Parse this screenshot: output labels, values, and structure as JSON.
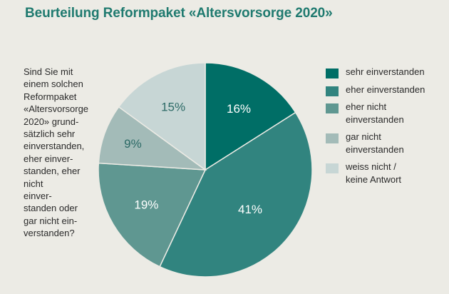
{
  "title": "Beurteilung Reformpaket «Altersvorsorge 2020»",
  "question": {
    "lines": [
      "Sind Sie mit",
      "einem solchen",
      "Reformpaket",
      "«Altersvorsorge",
      "2020» grund-",
      "sätzlich sehr",
      "einverstanden,",
      "eher einver-",
      "standen, eher",
      "nicht",
      "einver-",
      "standen oder",
      "gar nicht ein-",
      "verstanden?"
    ]
  },
  "chart_data": {
    "type": "pie",
    "title": "Beurteilung Reformpaket «Altersvorsorge 2020»",
    "legend_position": "right",
    "slices": [
      {
        "label": "sehr einverstanden",
        "legend_lines": [
          "sehr einverstanden"
        ],
        "value": 16,
        "value_label": "16%",
        "color": "#006e66",
        "label_color": "#ffffff"
      },
      {
        "label": "eher einverstanden",
        "legend_lines": [
          "eher einverstanden"
        ],
        "value": 41,
        "value_label": "41%",
        "color": "#31847f",
        "label_color": "#ffffff"
      },
      {
        "label": "eher nicht einverstanden",
        "legend_lines": [
          "eher nicht",
          "einverstanden"
        ],
        "value": 19,
        "value_label": "19%",
        "color": "#5f9791",
        "label_color": "#ffffff"
      },
      {
        "label": "gar nicht einverstanden",
        "legend_lines": [
          "gar nicht",
          "einverstanden"
        ],
        "value": 9,
        "value_label": "9%",
        "color": "#a3bbb8",
        "label_color": "#2c6a66"
      },
      {
        "label": "weiss nicht / keine Antwort",
        "legend_lines": [
          "weiss nicht /",
          "keine Antwort"
        ],
        "value": 15,
        "value_label": "15%",
        "color": "#c7d6d5",
        "label_color": "#2c6a66"
      }
    ]
  }
}
